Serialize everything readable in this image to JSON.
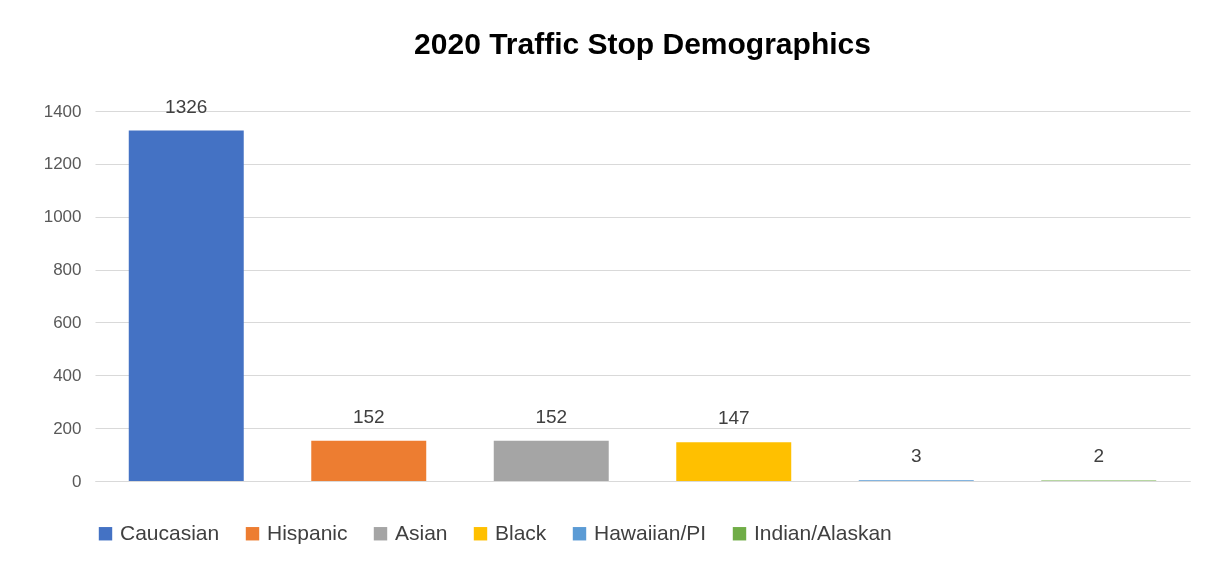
{
  "chart_data": {
    "type": "bar",
    "title": "2020 Traffic Stop Demographics",
    "categories": [
      null
    ],
    "series": [
      {
        "name": "Caucasian",
        "color": "#4472c4",
        "values": [
          1326
        ]
      },
      {
        "name": "Hispanic",
        "color": "#ed7d31",
        "values": [
          152
        ]
      },
      {
        "name": "Asian",
        "color": "#a5a5a5",
        "values": [
          152
        ]
      },
      {
        "name": "Black",
        "color": "#ffc000",
        "values": [
          147
        ]
      },
      {
        "name": "Hawaiian/PI",
        "color": "#5b9bd5",
        "values": [
          3
        ]
      },
      {
        "name": "Indian/Alaskan",
        "color": "#70ad47",
        "values": [
          2
        ]
      }
    ],
    "ylim": [
      0,
      1400
    ],
    "yticks": [
      0,
      200,
      400,
      600,
      800,
      1000,
      1200,
      1400
    ],
    "grid": "y",
    "legend": "bottom",
    "data_labels": true
  }
}
